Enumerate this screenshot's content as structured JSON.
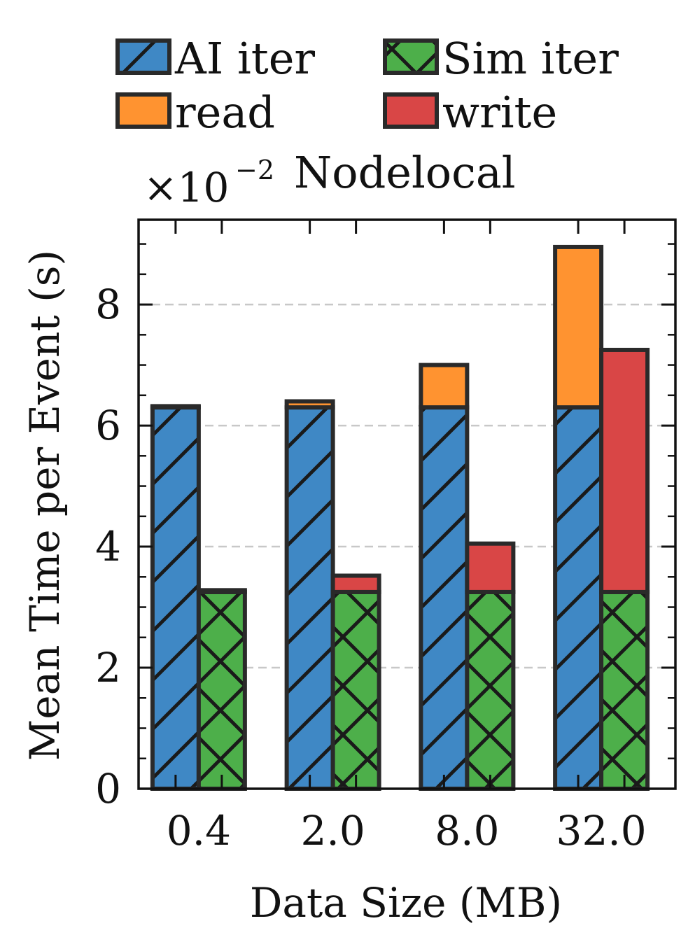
{
  "chart_data": {
    "type": "bar",
    "title": "Nodelocal",
    "scale_label": "×10",
    "scale_exponent": "−2",
    "xlabel": "Data Size (MB)",
    "ylabel": "Mean Time per Event (s)",
    "categories": [
      "0.4",
      "2.0",
      "8.0",
      "32.0"
    ],
    "ylim": [
      0,
      9.4
    ],
    "yticks": [
      "0",
      "2",
      "4",
      "6",
      "8"
    ],
    "grid": true,
    "legend_position": "top",
    "stacks": [
      {
        "name": "AI iter",
        "color": "#3f88c5",
        "hatch": "diagonal",
        "values": [
          6.3,
          6.3,
          6.3,
          6.3
        ]
      },
      {
        "name": "read",
        "color": "#ff9330",
        "hatch": "none",
        "values": [
          0.02,
          0.1,
          0.7,
          2.65
        ]
      },
      {
        "name": "Sim iter",
        "color": "#4daf4a",
        "hatch": "cross",
        "values": [
          3.25,
          3.25,
          3.25,
          3.25
        ]
      },
      {
        "name": "write",
        "color": "#d94646",
        "hatch": "none",
        "values": [
          0.03,
          0.27,
          0.8,
          4.0
        ]
      }
    ]
  }
}
